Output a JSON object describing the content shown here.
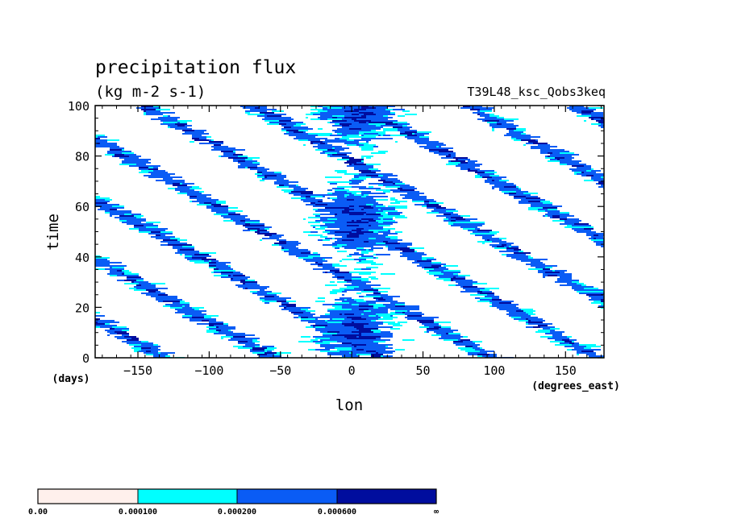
{
  "chart_data": {
    "type": "heatmap",
    "title": "precipitation flux",
    "units": "(kg m-2 s-1)",
    "experiment": "T39L48_ksc_Qobs3keq",
    "ylabel": "time",
    "yunits": "(days)",
    "xlabel": "lon",
    "xunits": "(degrees_east)",
    "xlim": [
      -180,
      177
    ],
    "ylim": [
      0,
      100
    ],
    "xticks": [
      -150,
      -100,
      -50,
      0,
      50,
      100,
      150
    ],
    "xtick_labels": [
      "−150",
      "−100",
      "−50",
      "0",
      "50",
      "100",
      "150"
    ],
    "yticks": [
      0,
      20,
      40,
      60,
      80,
      100
    ],
    "ytick_labels": [
      "0",
      "20",
      "40",
      "60",
      "80",
      "100"
    ],
    "colorbar": {
      "bounds_labels": [
        "0.00",
        "0.000100",
        "0.000200",
        "0.000600",
        "∞"
      ],
      "colors": [
        "#fff0ec",
        "#00ffff",
        "#0a5cf5",
        "#000d9e"
      ]
    },
    "features": [
      {
        "description": "convective envelope near lon 0 spanning most of the period",
        "lon": 0
      },
      {
        "description": "westward-propagating streaks from upper-left to lower-right"
      }
    ]
  }
}
